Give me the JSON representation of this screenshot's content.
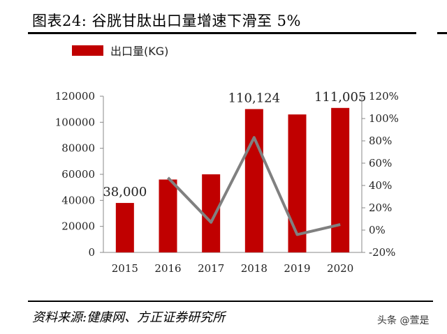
{
  "header": {
    "title": "图表24:   谷胱甘肽出口量增速下滑至 5%"
  },
  "footer": {
    "source": "资料来源:健康网、方正证券研究所",
    "watermark": "头条 @萱是"
  },
  "colors": {
    "bar": "#c00000",
    "line": "#808080"
  },
  "chart_data": {
    "type": "bar",
    "categories": [
      "2015",
      "2016",
      "2017",
      "2018",
      "2019",
      "2020"
    ],
    "series": [
      {
        "name": "出口量(KG)",
        "type": "bar",
        "axis": "left",
        "values": [
          38000,
          56000,
          60000,
          110124,
          106000,
          111005
        ]
      },
      {
        "type": "line",
        "axis": "right",
        "values": [
          null,
          47,
          7,
          83,
          -4,
          5
        ]
      }
    ],
    "data_labels": [
      {
        "category": "2015",
        "text": "38,000"
      },
      {
        "category": "2018",
        "text": "110,124"
      },
      {
        "category": "2020",
        "text": "111,005"
      }
    ],
    "y_left": {
      "min": 0,
      "max": 120000,
      "ticks": [
        0,
        20000,
        40000,
        60000,
        80000,
        100000,
        120000
      ]
    },
    "y_right": {
      "min": -20,
      "max": 120,
      "ticks": [
        "-20%",
        "0%",
        "20%",
        "40%",
        "60%",
        "80%",
        "100%",
        "120%"
      ]
    },
    "legend_position": "top-left",
    "grid": false
  }
}
